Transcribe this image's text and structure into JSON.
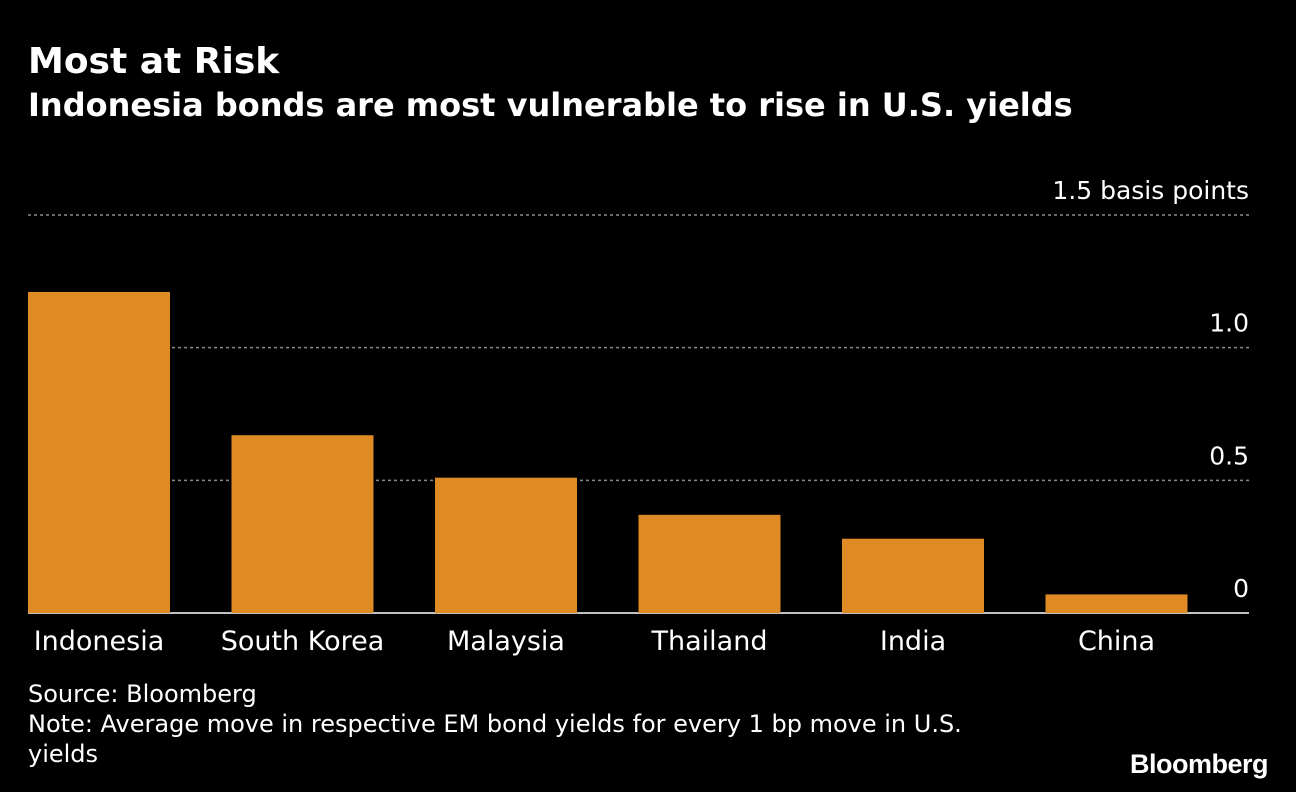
{
  "header": {
    "title": "Most at Risk",
    "subtitle": "Indonesia bonds are most vulnerable to rise in U.S. yields"
  },
  "footer": {
    "source": "Source: Bloomberg",
    "note": "Note: Average move in respective EM bond yields for every 1 bp move in U.S. yields",
    "logo": "Bloomberg"
  },
  "colors": {
    "background": "#000000",
    "bar": "#DE8B25",
    "grid": "#8a8a8a",
    "baseline": "#ffffff",
    "text": "#ffffff"
  },
  "chart_data": {
    "type": "bar",
    "title": "Most at Risk",
    "subtitle": "Indonesia bonds are most vulnerable to rise in U.S. yields",
    "categories": [
      "Indonesia",
      "South Korea",
      "Malaysia",
      "Thailand",
      "India",
      "China"
    ],
    "values": [
      1.21,
      0.67,
      0.51,
      0.37,
      0.28,
      0.07
    ],
    "ylim": [
      0,
      1.5
    ],
    "yticks": [
      0,
      0.5,
      1.0,
      1.5
    ],
    "ytick_labels": [
      "0",
      "0.5",
      "1.0",
      "1.5 basis points"
    ],
    "xlabel": "",
    "ylabel": "basis points",
    "grid": true,
    "legend": "none"
  }
}
